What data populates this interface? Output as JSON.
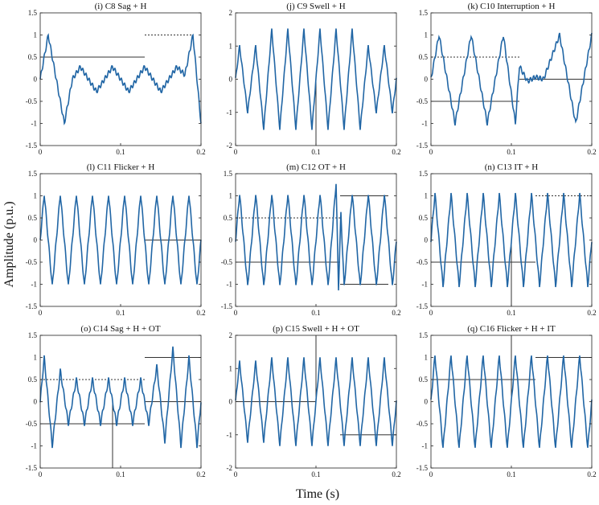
{
  "figure": {
    "ylabel": "Amplitude (p.u.)",
    "xlabel": "Time (s)"
  },
  "colors": {
    "signal": "#2166a5",
    "axis": "#222222",
    "guide": "#333333"
  },
  "chart_data": [
    {
      "type": "line",
      "title": "(i) C8 Sag + H",
      "xlim": [
        0,
        0.2
      ],
      "ylim": [
        -1.5,
        1.5
      ],
      "xticks": [
        0,
        0.1,
        0.2
      ],
      "yticks": [
        -1.5,
        -1,
        -0.5,
        0,
        0.5,
        1,
        1.5
      ],
      "series": [
        {
          "x": [
            0,
            0.01,
            0.02,
            0.03,
            0.04,
            0.05,
            0.06,
            0.07,
            0.08,
            0.09,
            0.1,
            0.11,
            0.12,
            0.13,
            0.14,
            0.15,
            0.16,
            0.17,
            0.18,
            0.19,
            0.2
          ],
          "y": [
            0,
            1.0,
            0,
            -1.0,
            0,
            0.28,
            0,
            -0.28,
            0,
            0.28,
            0,
            -0.28,
            0,
            0.28,
            0,
            -0.28,
            0,
            0.28,
            0.1,
            1.0,
            -1.0
          ]
        }
      ]
    },
    {
      "type": "line",
      "title": "(j) C9 Swell + H",
      "xlim": [
        0,
        0.2
      ],
      "ylim": [
        -2,
        2
      ],
      "xticks": [
        0,
        0.1,
        0.2
      ],
      "yticks": [
        -2,
        -1,
        0,
        1,
        2
      ],
      "series": [
        {
          "x": [
            0,
            0.005,
            0.015,
            0.025,
            0.035,
            0.045,
            0.055,
            0.065,
            0.075,
            0.085,
            0.095,
            0.105,
            0.115,
            0.125,
            0.135,
            0.145,
            0.155,
            0.165,
            0.175,
            0.185,
            0.195,
            0.2
          ],
          "y": [
            0,
            1.0,
            -1.0,
            1.0,
            -1.5,
            1.5,
            -1.5,
            1.5,
            -1.5,
            1.5,
            -1.5,
            1.5,
            -1.5,
            1.5,
            -1.5,
            1.5,
            -1.5,
            1.0,
            -1.0,
            1.0,
            -1.0,
            0
          ]
        }
      ]
    },
    {
      "type": "line",
      "title": "(k) C10 Interruption + H",
      "xlim": [
        0,
        0.2
      ],
      "ylim": [
        -1.5,
        1.5
      ],
      "xticks": [
        0,
        0.1,
        0.2
      ],
      "yticks": [
        -1.5,
        -1,
        -0.5,
        0,
        0.5,
        1,
        1.5
      ],
      "series": [
        {
          "x": [
            0,
            0.01,
            0.03,
            0.05,
            0.07,
            0.09,
            0.105,
            0.11,
            0.12,
            0.13,
            0.14,
            0.16,
            0.18,
            0.2
          ],
          "y": [
            0,
            1.0,
            -1.0,
            1.0,
            -1.0,
            1.0,
            -1.0,
            0.3,
            -0.05,
            0.05,
            0.0,
            1.0,
            -1.0,
            1.0
          ]
        }
      ]
    },
    {
      "type": "line",
      "title": "(l) C11 Flicker + H",
      "xlim": [
        0,
        0.2
      ],
      "ylim": [
        -1.5,
        1.5
      ],
      "xticks": [
        0,
        0.1,
        0.2
      ],
      "yticks": [
        -1.5,
        -1,
        -0.5,
        0,
        0.5,
        1,
        1.5
      ],
      "series": [
        {
          "x": [
            0,
            0.005,
            0.015,
            0.025,
            0.035,
            0.045,
            0.055,
            0.065,
            0.075,
            0.085,
            0.095,
            0.105,
            0.115,
            0.125,
            0.135,
            0.145,
            0.155,
            0.165,
            0.175,
            0.185,
            0.195,
            0.2
          ],
          "y": [
            0,
            1.05,
            -1.05,
            1.05,
            -1.05,
            1.05,
            -1.05,
            1.05,
            -1.05,
            1.05,
            -1.05,
            1.05,
            -1.05,
            1.05,
            -1.05,
            1.05,
            -1.05,
            1.05,
            -1.05,
            1.05,
            -1.05,
            0
          ]
        }
      ]
    },
    {
      "type": "line",
      "title": "(m) C12 OT + H",
      "xlim": [
        0,
        0.2
      ],
      "ylim": [
        -1.5,
        1.5
      ],
      "xticks": [
        0,
        0.1,
        0.2
      ],
      "yticks": [
        -1.5,
        -1,
        -0.5,
        0,
        0.5,
        1,
        1.5
      ],
      "series": [
        {
          "x": [
            0,
            0.005,
            0.015,
            0.025,
            0.035,
            0.045,
            0.055,
            0.065,
            0.075,
            0.085,
            0.095,
            0.105,
            0.115,
            0.125,
            0.128,
            0.131,
            0.135,
            0.145,
            0.155,
            0.165,
            0.175,
            0.185,
            0.195,
            0.2
          ],
          "y": [
            0,
            1.05,
            -1.05,
            1.05,
            -1.05,
            1.05,
            -1.05,
            1.05,
            -1.05,
            1.05,
            -1.05,
            1.05,
            -1.05,
            1.3,
            -1.1,
            0.6,
            -1.05,
            1.05,
            -1.05,
            1.05,
            -1.05,
            1.05,
            -1.05,
            0
          ]
        }
      ]
    },
    {
      "type": "line",
      "title": "(n) C13 IT + H",
      "xlim": [
        0,
        0.2
      ],
      "ylim": [
        -1.5,
        1.5
      ],
      "xticks": [
        0,
        0.1,
        0.2
      ],
      "yticks": [
        -1.5,
        -1,
        -0.5,
        0,
        0.5,
        1,
        1.5
      ],
      "series": [
        {
          "x": [
            0,
            0.005,
            0.015,
            0.025,
            0.035,
            0.045,
            0.055,
            0.065,
            0.075,
            0.085,
            0.095,
            0.105,
            0.115,
            0.125,
            0.135,
            0.145,
            0.155,
            0.165,
            0.175,
            0.185,
            0.195,
            0.2
          ],
          "y": [
            0,
            1.05,
            -1.05,
            1.05,
            -1.05,
            1.05,
            -1.05,
            1.05,
            -1.05,
            1.05,
            -1.05,
            1.05,
            -1.05,
            1.05,
            -1.05,
            1.05,
            -1.05,
            1.05,
            -1.05,
            1.05,
            -1.05,
            0
          ]
        }
      ]
    },
    {
      "type": "line",
      "title": "(o) C14 Sag + H + OT",
      "xlim": [
        0,
        0.2
      ],
      "ylim": [
        -1.5,
        1.5
      ],
      "xticks": [
        0,
        0.1,
        0.2
      ],
      "yticks": [
        -1.5,
        -1,
        -0.5,
        0,
        0.5,
        1,
        1.5
      ],
      "series": [
        {
          "x": [
            0,
            0.005,
            0.015,
            0.025,
            0.035,
            0.045,
            0.055,
            0.065,
            0.075,
            0.085,
            0.095,
            0.105,
            0.115,
            0.125,
            0.135,
            0.145,
            0.155,
            0.165,
            0.175,
            0.185,
            0.195,
            0.2
          ],
          "y": [
            0,
            1.0,
            -1.0,
            0.7,
            -0.5,
            0.5,
            -0.5,
            0.5,
            -0.5,
            0.5,
            -0.5,
            0.5,
            -0.5,
            0.5,
            -0.5,
            0.8,
            -0.9,
            1.2,
            -1.0,
            1.0,
            -1.0,
            0
          ]
        }
      ]
    },
    {
      "type": "line",
      "title": "(p) C15 Swell + H + OT",
      "xlim": [
        0,
        0.2
      ],
      "ylim": [
        -2,
        2
      ],
      "xticks": [
        0,
        0.1,
        0.2
      ],
      "yticks": [
        -2,
        -1,
        0,
        1,
        2
      ],
      "series": [
        {
          "x": [
            0,
            0.005,
            0.015,
            0.025,
            0.035,
            0.045,
            0.055,
            0.065,
            0.075,
            0.085,
            0.095,
            0.105,
            0.115,
            0.125,
            0.135,
            0.145,
            0.155,
            0.165,
            0.175,
            0.185,
            0.195,
            0.2
          ],
          "y": [
            0,
            1.2,
            -1.2,
            1.2,
            -1.2,
            1.3,
            -1.3,
            1.3,
            -1.3,
            1.3,
            -1.3,
            1.3,
            -1.3,
            1.3,
            -1.3,
            1.3,
            -1.3,
            1.3,
            -1.3,
            1.3,
            -1.3,
            0
          ]
        }
      ]
    },
    {
      "type": "line",
      "title": "(q) C16 Flicker + H + IT",
      "xlim": [
        0,
        0.2
      ],
      "ylim": [
        -1.5,
        1.5
      ],
      "xticks": [
        0,
        0.1,
        0.2
      ],
      "yticks": [
        -1.5,
        -1,
        -0.5,
        0,
        0.5,
        1,
        1.5
      ],
      "series": [
        {
          "x": [
            0,
            0.005,
            0.015,
            0.025,
            0.035,
            0.045,
            0.055,
            0.065,
            0.075,
            0.085,
            0.095,
            0.105,
            0.115,
            0.125,
            0.135,
            0.145,
            0.155,
            0.165,
            0.175,
            0.185,
            0.195,
            0.2
          ],
          "y": [
            0,
            1.05,
            -1.05,
            1.05,
            -1.05,
            1.05,
            -1.05,
            1.05,
            -1.05,
            1.05,
            -1.05,
            1.05,
            -1.05,
            1.05,
            -1.05,
            1.05,
            -1.05,
            1.05,
            -1.05,
            1.05,
            -1.05,
            0
          ]
        }
      ]
    }
  ]
}
